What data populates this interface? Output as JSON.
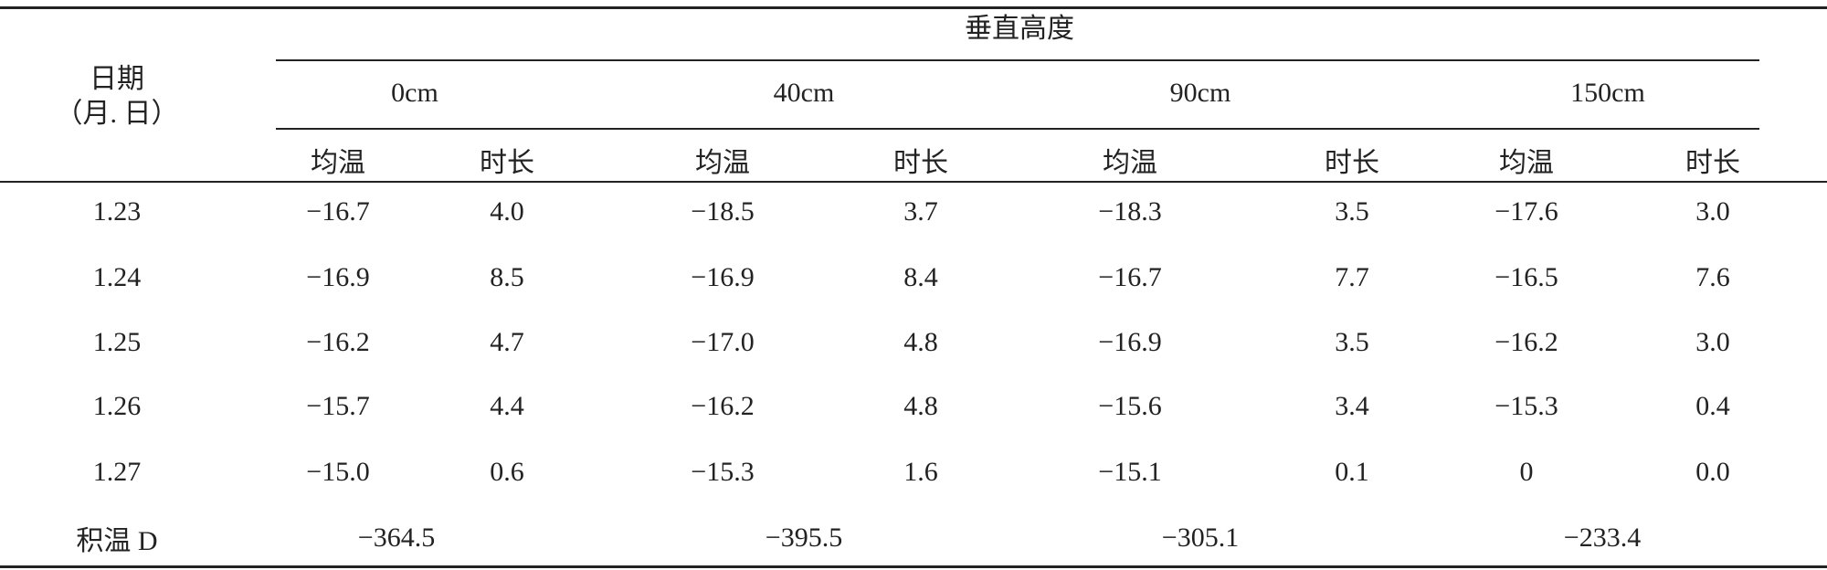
{
  "header": {
    "date_label": "日期",
    "date_sub": "（月. 日）",
    "group_label": "垂直高度",
    "heights": [
      "0cm",
      "40cm",
      "90cm",
      "150cm"
    ],
    "subcolumns": [
      "均温",
      "时长",
      "均温",
      "时长",
      "均温",
      "时长",
      "均温",
      "时长"
    ]
  },
  "rows": [
    [
      "1.23",
      "−16.7",
      "4.0",
      "−18.5",
      "3.7",
      "−18.3",
      "3.5",
      "−17.6",
      "3.0"
    ],
    [
      "1.24",
      "−16.9",
      "8.5",
      "−16.9",
      "8.4",
      "−16.7",
      "7.7",
      "−16.5",
      "7.6"
    ],
    [
      "1.25",
      "−16.2",
      "4.7",
      "−17.0",
      "4.8",
      "−16.9",
      "3.5",
      "−16.2",
      "3.0"
    ],
    [
      "1.26",
      "−15.7",
      "4.4",
      "−16.2",
      "4.8",
      "−15.6",
      "3.4",
      "−15.3",
      "0.4"
    ],
    [
      "1.27",
      "−15.0",
      "0.6",
      "−15.3",
      "1.6",
      "−15.1",
      "0.1",
      "0",
      "0.0"
    ]
  ],
  "footer": {
    "label": "积温 D",
    "values": [
      "−364.5",
      "−395.5",
      "−305.1",
      "−233.4"
    ]
  }
}
